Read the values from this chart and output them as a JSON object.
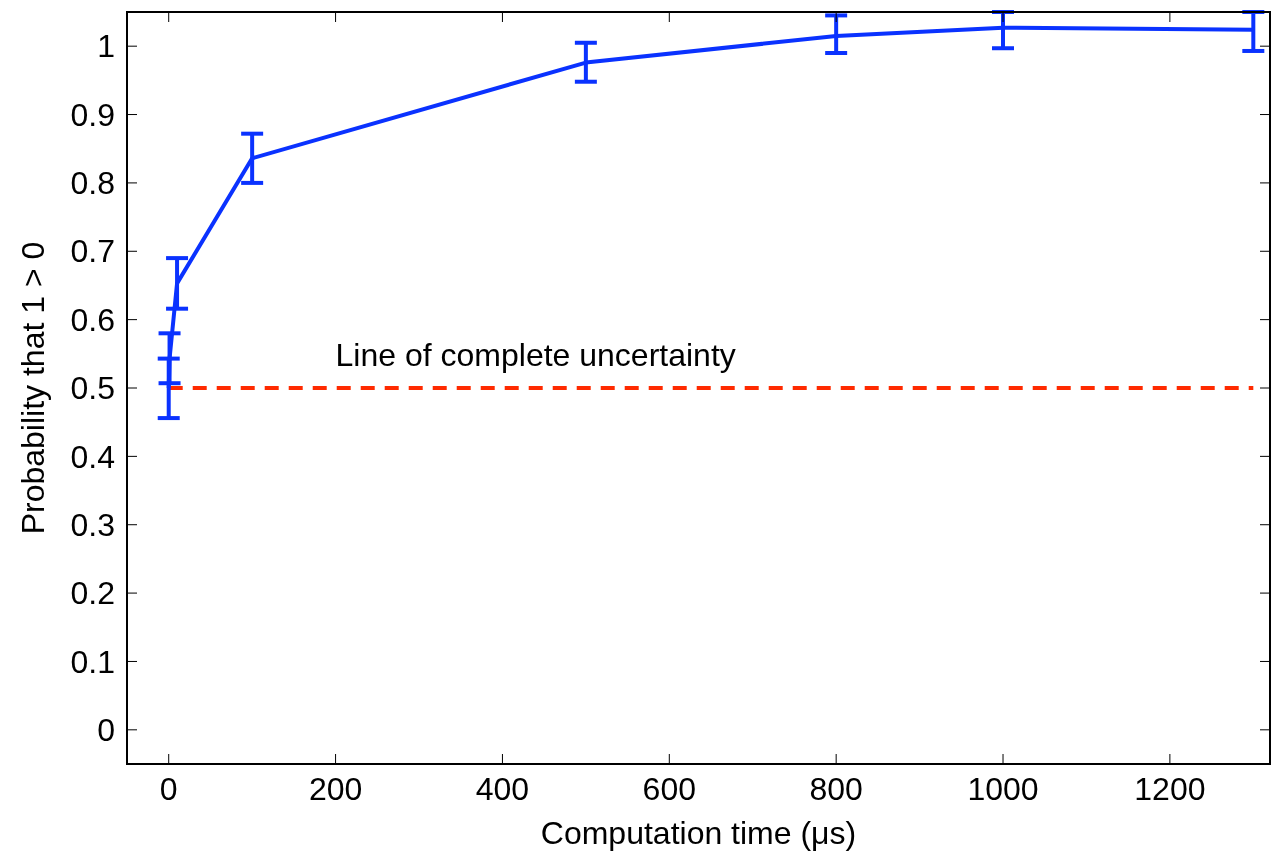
{
  "chart_data": {
    "type": "line",
    "xlabel": "Computation time (μs)",
    "ylabel": "Probability that 1 > 0",
    "x": [
      0,
      1,
      10,
      100,
      500,
      800,
      1000,
      1300
    ],
    "series": [
      {
        "color": "#0a32ff",
        "values": [
          0.5,
          0.543,
          0.653,
          0.836,
          0.976,
          1.015,
          1.027,
          1.024
        ],
        "errors": [
          [
            0.456,
            0.543
          ],
          [
            0.507,
            0.58
          ],
          [
            0.616,
            0.69
          ],
          [
            0.8,
            0.872
          ],
          [
            0.948,
            1.005
          ],
          [
            0.99,
            1.045
          ],
          [
            0.997,
            1.05
          ],
          [
            0.993,
            1.05
          ]
        ]
      }
    ],
    "xlim": [
      -50,
      1320
    ],
    "ylim": [
      -0.05,
      1.05
    ],
    "xticks": [
      0,
      200,
      400,
      600,
      800,
      1000,
      1200
    ],
    "yticks": [
      0,
      0.1,
      0.2,
      0.3,
      0.4,
      0.5,
      0.6,
      0.7,
      0.8,
      0.9,
      1
    ],
    "ref_lines": [
      {
        "axis": "y",
        "value": 0.5,
        "label": "Line of complete uncertainty",
        "color": "#ff2a00",
        "line_style": "dashed"
      }
    ],
    "grid": false,
    "marker": "none",
    "line_style": "solid"
  }
}
